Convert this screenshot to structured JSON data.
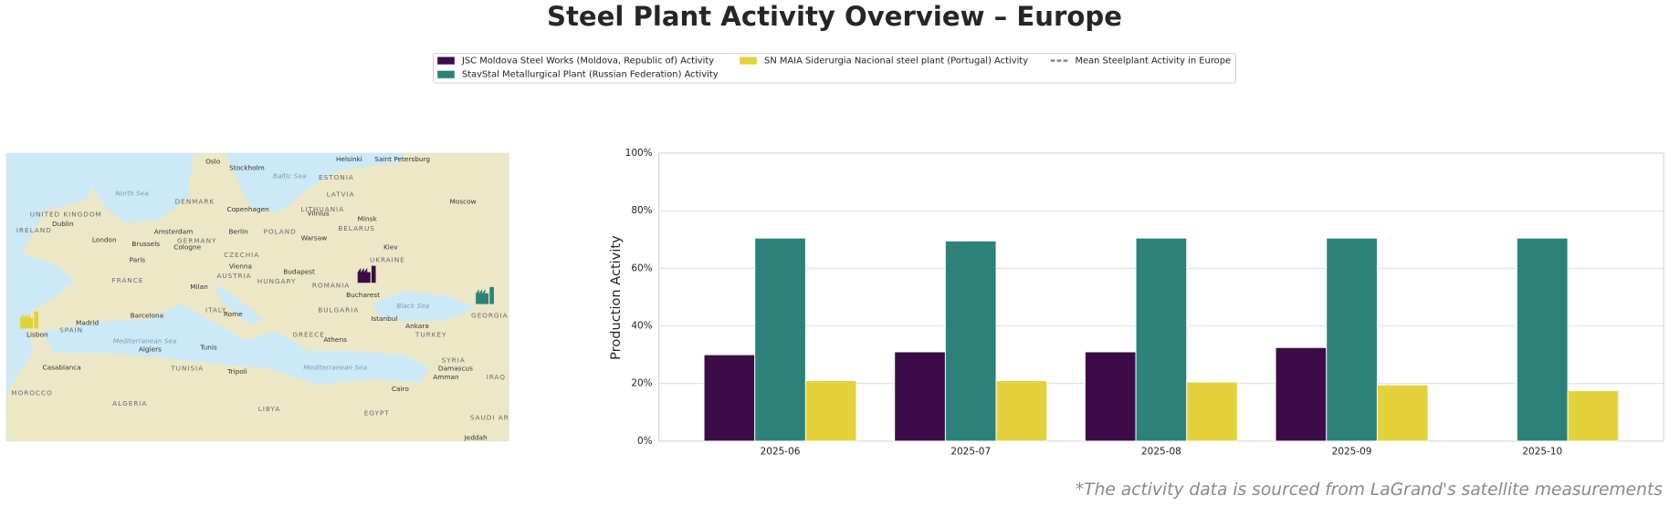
{
  "chart_data": {
    "type": "bar",
    "title": "Steel Plant Activity Overview – Europe",
    "y_label": "Production Activity",
    "footnote": "*The activity data is sourced from LaGrand's satellite measurements",
    "categories": [
      "2025-06",
      "2025-07",
      "2025-08",
      "2025-09",
      "2025-10"
    ],
    "series": [
      {
        "name": "JSC Moldova Steel Works (Moldova, Republic of) Activity",
        "color": "#3b0c46",
        "values": [
          30,
          31,
          31,
          32.5,
          null
        ]
      },
      {
        "name": "StavStal Metallurgical Plant (Russian Federation) Activity",
        "color": "#2c8279",
        "values": [
          70.5,
          69.5,
          70.5,
          70.5,
          70.5
        ]
      },
      {
        "name": "SN MAIA Siderurgia Nacional steel plant (Portugal) Activity",
        "color": "#e3d23c",
        "values": [
          21,
          21,
          20.5,
          19.5,
          17.5
        ]
      },
      {
        "name": "Mean Steelplant Activity in Europe",
        "color": "#808080",
        "style": "dashed",
        "values": [
          null,
          null,
          null,
          null,
          null
        ]
      }
    ],
    "ylim": [
      0,
      100
    ],
    "yticks": [
      {
        "value": 0,
        "label": "0%"
      },
      {
        "value": 20,
        "label": "20%"
      },
      {
        "value": 40,
        "label": "40%"
      },
      {
        "value": 60,
        "label": "60%"
      },
      {
        "value": 80,
        "label": "80%"
      },
      {
        "value": 100,
        "label": "100%"
      }
    ],
    "grid": true,
    "legend": "top"
  },
  "map": {
    "labels": [
      "Oslo",
      "Stockholm",
      "Helsinki",
      "Saint Petersburg",
      "North Sea",
      "Baltic Sea",
      "ESTONIA",
      "LATVIA",
      "DENMARK",
      "Copenhagen",
      "LITHUANIA",
      "Moscow",
      "UNITED KINGDOM",
      "Dublin",
      "IRELAND",
      "Amsterdam",
      "Berlin",
      "POLAND",
      "Vilnius",
      "Minsk",
      "BELARUS",
      "London",
      "Brussels",
      "GERMANY",
      "Cologne",
      "Warsaw",
      "Kiev",
      "CZECHIA",
      "UKRAINE",
      "Paris",
      "Vienna",
      "Budapest",
      "AUSTRIA",
      "FRANCE",
      "HUNGARY",
      "ROMANIA",
      "Milan",
      "Bucharest",
      "Black Sea",
      "BULGARIA",
      "ITALY",
      "Rome",
      "Istanbul",
      "Ankara",
      "GEORGIA",
      "Barcelona",
      "Madrid",
      "SPAIN",
      "Lisbon",
      "TURKEY",
      "GREECE",
      "Athens",
      "Mediterranean Sea",
      "Tunis",
      "Algiers",
      "Mediterranean Sea",
      "SYRIA",
      "Damascus",
      "TUNISIA",
      "Tripoli",
      "Amman",
      "IRAQ",
      "Casablanca",
      "MOROCCO",
      "Cairo",
      "ALGERIA",
      "LIBYA",
      "EGYPT",
      "SAUDI AR",
      "Jeddah"
    ]
  }
}
